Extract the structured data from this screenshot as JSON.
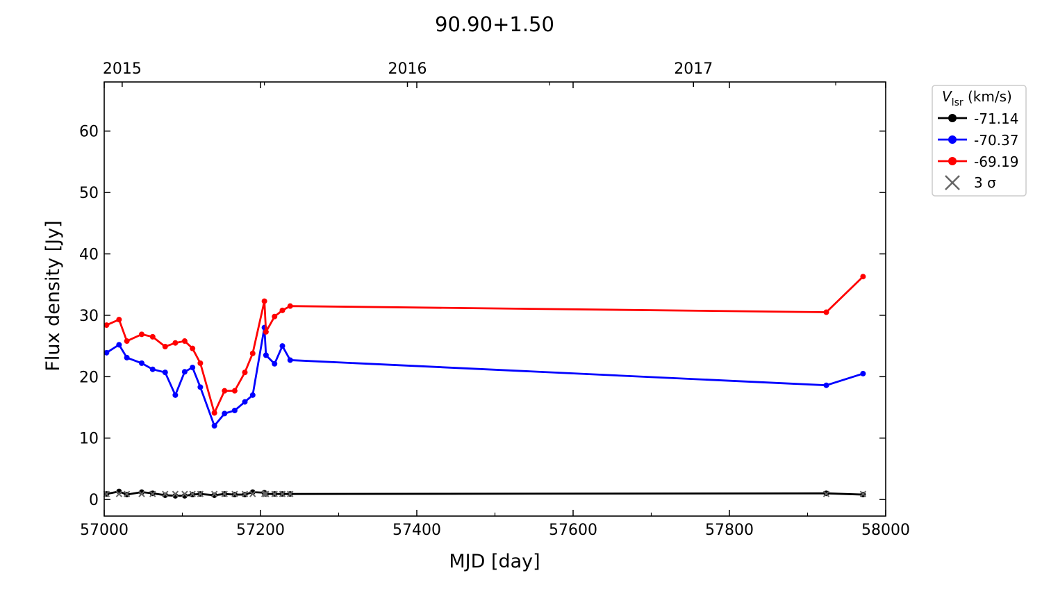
{
  "chart_data": {
    "type": "line",
    "title": "90.90+1.50",
    "xlabel": "MJD [day]",
    "ylabel": "Flux density [Jy]",
    "xlim": [
      57000,
      58000
    ],
    "ylim": [
      -2.7,
      68
    ],
    "xticks": [
      "57000",
      "57200",
      "57400",
      "57600",
      "57800",
      "58000"
    ],
    "yticks": [
      "0",
      "10",
      "20",
      "30",
      "40",
      "50",
      "60"
    ],
    "top_axis": {
      "labels": [
        "2015",
        "2016",
        "2017"
      ],
      "mjd": [
        57023,
        57388,
        57754
      ]
    },
    "legend": {
      "title": "V",
      "title_sub": "lsr",
      "title_unit": " (km/s)",
      "placement": "outside-right-top",
      "sigma_label": "3 σ"
    },
    "x": [
      57003,
      57019,
      57029,
      57048,
      57062,
      57078,
      57091,
      57103,
      57113,
      57123,
      57141,
      57154,
      57167,
      57180,
      57190,
      57205,
      57207,
      57218,
      57228,
      57238,
      57924,
      57971
    ],
    "series": [
      {
        "name": "-71.14",
        "color": "#000000",
        "values": [
          0.9,
          1.3,
          0.8,
          1.2,
          1.0,
          0.7,
          0.6,
          0.6,
          0.8,
          0.9,
          0.7,
          0.9,
          0.8,
          0.8,
          1.2,
          1.1,
          0.9,
          0.9,
          0.9,
          0.9,
          1.0,
          0.8
        ]
      },
      {
        "name": "-70.37",
        "color": "#0000ff",
        "values": [
          23.9,
          25.2,
          23.1,
          22.2,
          21.2,
          20.7,
          17.0,
          20.8,
          21.5,
          18.3,
          12.0,
          14.0,
          14.5,
          15.9,
          17.0,
          28.0,
          23.5,
          22.1,
          25.0,
          22.7,
          18.6,
          20.5
        ]
      },
      {
        "name": "-69.19",
        "color": "#ff0000",
        "values": [
          28.4,
          29.3,
          25.8,
          26.9,
          26.5,
          24.9,
          25.5,
          25.8,
          24.6,
          22.2,
          14.1,
          17.7,
          17.7,
          20.7,
          23.8,
          32.3,
          27.3,
          29.8,
          30.8,
          31.5,
          30.5,
          36.3
        ]
      }
    ],
    "sigma3": {
      "color": "#666666",
      "values": [
        0.9,
        0.9,
        0.9,
        0.9,
        0.9,
        0.9,
        0.9,
        0.9,
        0.9,
        0.9,
        0.9,
        0.9,
        0.9,
        0.9,
        0.9,
        0.9,
        0.9,
        0.9,
        0.9,
        0.9,
        0.9,
        0.9
      ]
    }
  }
}
